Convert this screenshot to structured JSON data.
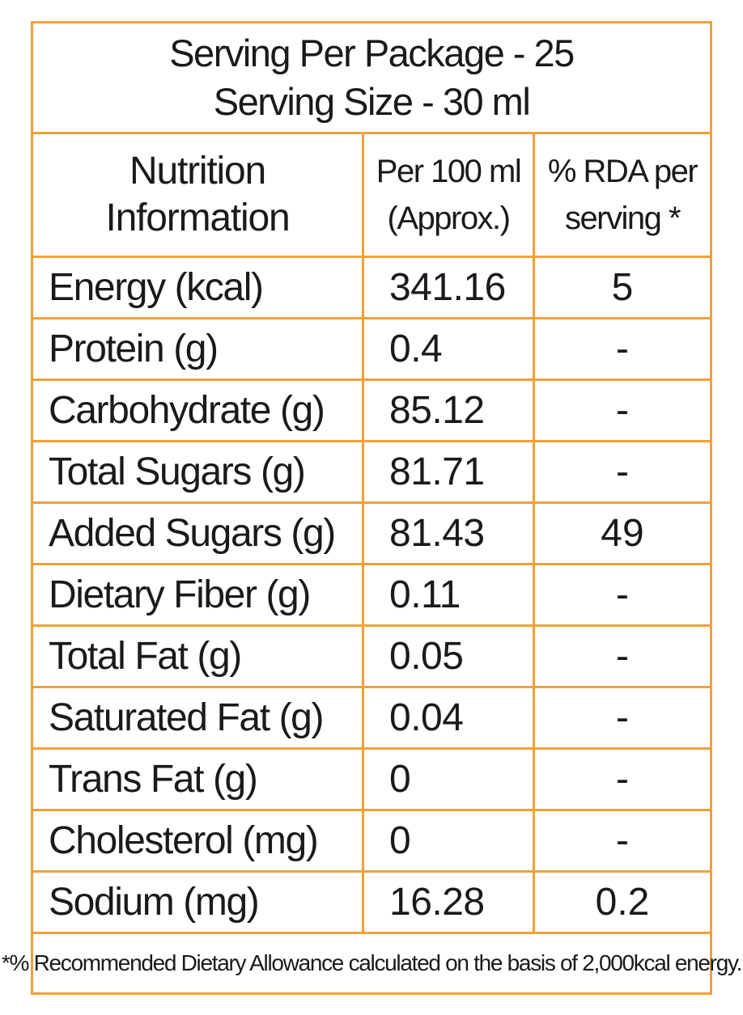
{
  "colors": {
    "border": "#f0a13a",
    "text": "#1a1a1a"
  },
  "header": {
    "servings_per_package": "Serving Per Package - 25",
    "serving_size": "Serving Size - 30 ml"
  },
  "table": {
    "columns": [
      {
        "line1": "Nutrition",
        "line2": "Information"
      },
      {
        "line1": "Per 100 ml",
        "line2": "(Approx.)"
      },
      {
        "line1": "% RDA per",
        "line2": "serving *"
      }
    ],
    "rows": [
      {
        "nutrient": "Energy (kcal)",
        "per_100ml": "341.16",
        "rda": "5"
      },
      {
        "nutrient": "Protein (g)",
        "per_100ml": "0.4",
        "rda": "-"
      },
      {
        "nutrient": "Carbohydrate (g)",
        "per_100ml": "85.12",
        "rda": "-"
      },
      {
        "nutrient": "Total Sugars (g)",
        "per_100ml": "81.71",
        "rda": "-"
      },
      {
        "nutrient": "Added Sugars (g)",
        "per_100ml": "81.43",
        "rda": "49"
      },
      {
        "nutrient": "Dietary Fiber (g)",
        "per_100ml": "0.11",
        "rda": "-"
      },
      {
        "nutrient": "Total Fat (g)",
        "per_100ml": "0.05",
        "rda": "-"
      },
      {
        "nutrient": "Saturated Fat (g)",
        "per_100ml": "0.04",
        "rda": "-"
      },
      {
        "nutrient": "Trans Fat (g)",
        "per_100ml": "0",
        "rda": "-"
      },
      {
        "nutrient": "Cholesterol (mg)",
        "per_100ml": "0",
        "rda": "-"
      },
      {
        "nutrient": "Sodium (mg)",
        "per_100ml": "16.28",
        "rda": "0.2"
      }
    ]
  },
  "footnote": "*% Recommended Dietary Allowance calculated on the basis of 2,000kcal energy."
}
